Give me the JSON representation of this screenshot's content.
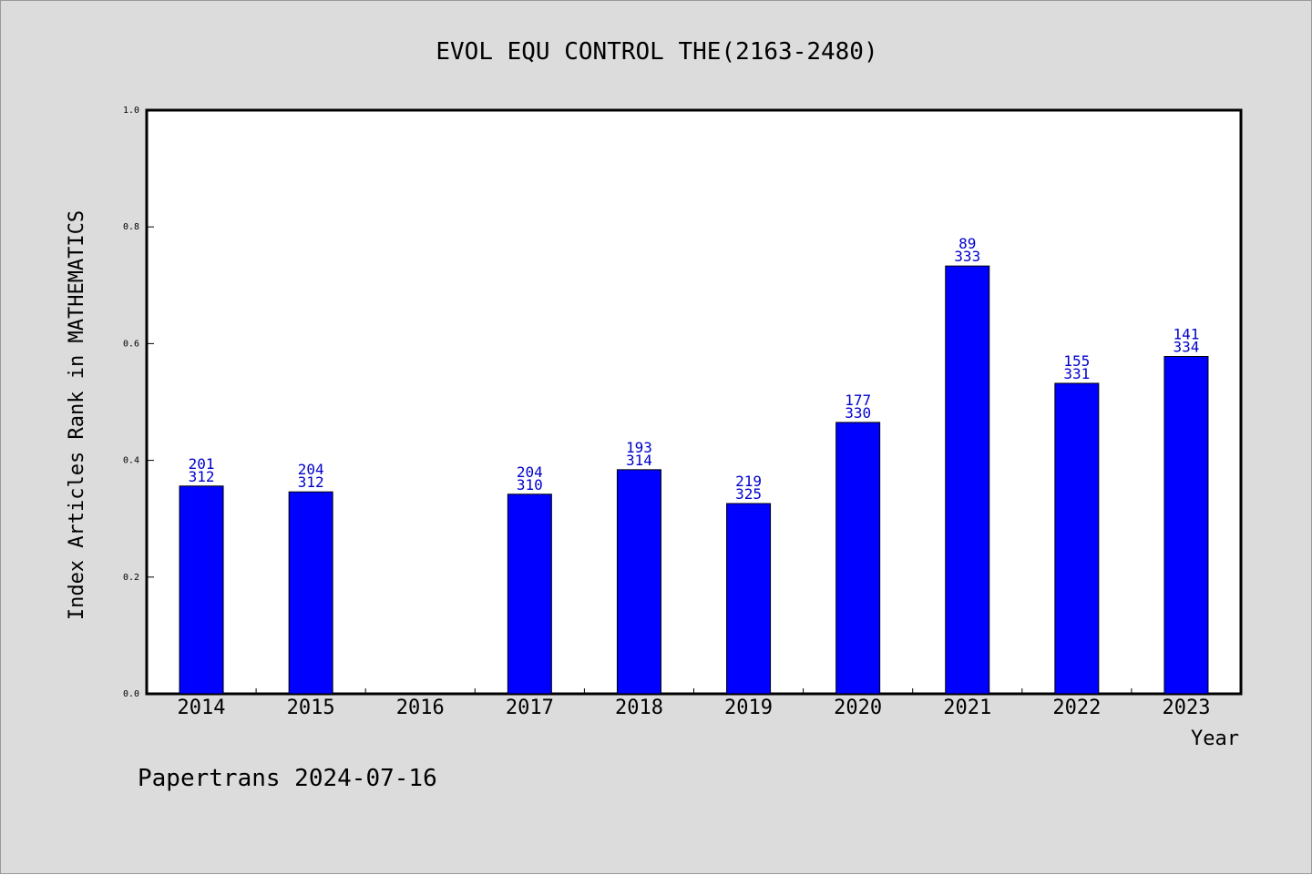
{
  "chart_data": {
    "type": "bar",
    "title": "EVOL EQU CONTROL THE(2163-2480)",
    "xlabel": "Year",
    "ylabel": "Index Articles Rank in MATHEMATICS",
    "ylim": [
      0,
      1.0
    ],
    "yticks": [
      "0.0",
      "0.2",
      "0.4",
      "0.6",
      "0.8",
      "1.0"
    ],
    "categories": [
      "2014",
      "2015",
      "2016",
      "2017",
      "2018",
      "2019",
      "2020",
      "2021",
      "2022",
      "2023"
    ],
    "values": [
      0.356,
      0.346,
      null,
      0.342,
      0.384,
      0.326,
      0.465,
      0.733,
      0.532,
      0.578
    ],
    "labels_top": [
      "201",
      "204",
      "",
      "204",
      "193",
      "219",
      "177",
      "89",
      "155",
      "141"
    ],
    "labels_bottom": [
      "312",
      "312",
      "",
      "310",
      "314",
      "325",
      "330",
      "333",
      "331",
      "334"
    ],
    "bar_color": "#0000ff",
    "label_color": "#0000cc",
    "grid": false,
    "legend": "none"
  },
  "footer": "Papertrans 2024-07-16"
}
